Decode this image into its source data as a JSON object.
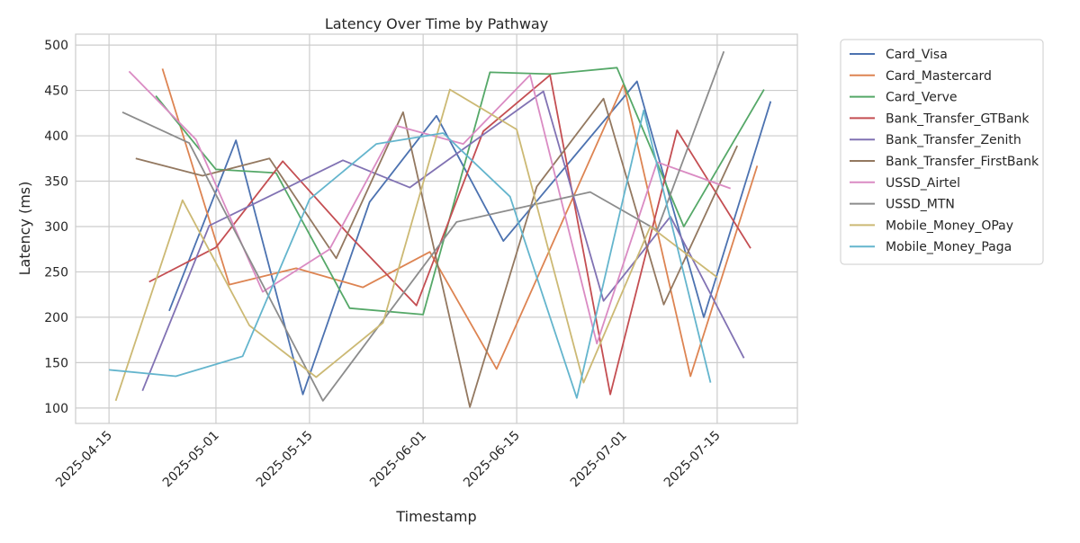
{
  "chart_data": {
    "type": "line",
    "title": "Latency Over Time by Pathway",
    "xlabel": "Timestamp",
    "ylabel": "Latency (ms)",
    "x_ticks": [
      "2025-04-15",
      "2025-05-01",
      "2025-05-15",
      "2025-06-01",
      "2025-06-15",
      "2025-07-01",
      "2025-07-15"
    ],
    "y_ticks": [
      100,
      150,
      200,
      250,
      300,
      350,
      400,
      450,
      500
    ],
    "xlim": [
      "2025-04-10",
      "2025-07-27"
    ],
    "ylim": [
      83,
      512
    ],
    "grid": true,
    "legend_position": "outside-right",
    "series": [
      {
        "name": "Card_Visa",
        "color": "#4c72b0",
        "points": [
          [
            "2025-04-24",
            207
          ],
          [
            "2025-05-04",
            395
          ],
          [
            "2025-05-14",
            115
          ],
          [
            "2025-05-24",
            327
          ],
          [
            "2025-06-03",
            422
          ],
          [
            "2025-06-13",
            284
          ],
          [
            "2025-07-03",
            460
          ],
          [
            "2025-07-13",
            200
          ],
          [
            "2025-07-23",
            438
          ]
        ]
      },
      {
        "name": "Card_Mastercard",
        "color": "#dd8452",
        "points": [
          [
            "2025-04-23",
            474
          ],
          [
            "2025-05-03",
            236
          ],
          [
            "2025-05-13",
            254
          ],
          [
            "2025-05-23",
            233
          ],
          [
            "2025-06-02",
            272
          ],
          [
            "2025-06-12",
            143
          ],
          [
            "2025-07-01",
            457
          ],
          [
            "2025-07-11",
            135
          ],
          [
            "2025-07-21",
            367
          ]
        ]
      },
      {
        "name": "Card_Verve",
        "color": "#55a868",
        "points": [
          [
            "2025-04-22",
            444
          ],
          [
            "2025-05-01",
            363
          ],
          [
            "2025-05-10",
            359
          ],
          [
            "2025-05-21",
            210
          ],
          [
            "2025-06-01",
            203
          ],
          [
            "2025-06-11",
            470
          ],
          [
            "2025-06-20",
            468
          ],
          [
            "2025-06-30",
            475
          ],
          [
            "2025-07-10",
            300
          ],
          [
            "2025-07-22",
            451
          ]
        ]
      },
      {
        "name": "Bank_Transfer_GTBank",
        "color": "#c44e52",
        "points": [
          [
            "2025-04-21",
            239
          ],
          [
            "2025-05-01",
            277
          ],
          [
            "2025-05-11",
            372
          ],
          [
            "2025-05-21",
            290
          ],
          [
            "2025-05-31",
            213
          ],
          [
            "2025-06-10",
            405
          ],
          [
            "2025-06-20",
            467
          ],
          [
            "2025-06-29",
            115
          ],
          [
            "2025-07-09",
            406
          ],
          [
            "2025-07-20",
            276
          ]
        ]
      },
      {
        "name": "Bank_Transfer_Zenith",
        "color": "#8172b3",
        "points": [
          [
            "2025-04-20",
            119
          ],
          [
            "2025-04-30",
            301
          ],
          [
            "2025-05-20",
            373
          ],
          [
            "2025-05-30",
            343
          ],
          [
            "2025-06-19",
            449
          ],
          [
            "2025-06-28",
            218
          ],
          [
            "2025-07-08",
            311
          ],
          [
            "2025-07-19",
            155
          ]
        ]
      },
      {
        "name": "Bank_Transfer_FirstBank",
        "color": "#937860",
        "points": [
          [
            "2025-04-19",
            375
          ],
          [
            "2025-04-29",
            356
          ],
          [
            "2025-05-09",
            375
          ],
          [
            "2025-05-19",
            265
          ],
          [
            "2025-05-29",
            426
          ],
          [
            "2025-06-08",
            101
          ],
          [
            "2025-06-18",
            344
          ],
          [
            "2025-06-28",
            441
          ],
          [
            "2025-07-07",
            214
          ],
          [
            "2025-07-18",
            389
          ]
        ]
      },
      {
        "name": "USSD_Airtel",
        "color": "#da8bc3",
        "points": [
          [
            "2025-04-18",
            471
          ],
          [
            "2025-04-28",
            396
          ],
          [
            "2025-05-08",
            228
          ],
          [
            "2025-05-18",
            275
          ],
          [
            "2025-05-28",
            411
          ],
          [
            "2025-06-07",
            391
          ],
          [
            "2025-06-17",
            467
          ],
          [
            "2025-06-27",
            171
          ],
          [
            "2025-07-06",
            371
          ],
          [
            "2025-07-17",
            342
          ]
        ]
      },
      {
        "name": "USSD_MTN",
        "color": "#8c8c8c",
        "points": [
          [
            "2025-04-17",
            426
          ],
          [
            "2025-04-27",
            392
          ],
          [
            "2025-05-17",
            108
          ],
          [
            "2025-06-06",
            305
          ],
          [
            "2025-06-26",
            338
          ],
          [
            "2025-07-06",
            296
          ],
          [
            "2025-07-16",
            493
          ]
        ]
      },
      {
        "name": "Mobile_Money_OPay",
        "color": "#ccb974",
        "points": [
          [
            "2025-04-16",
            108
          ],
          [
            "2025-04-26",
            329
          ],
          [
            "2025-05-06",
            191
          ],
          [
            "2025-05-16",
            134
          ],
          [
            "2025-05-26",
            194
          ],
          [
            "2025-06-05",
            451
          ],
          [
            "2025-06-15",
            407
          ],
          [
            "2025-06-25",
            128
          ],
          [
            "2025-07-05",
            300
          ],
          [
            "2025-07-15",
            244
          ]
        ]
      },
      {
        "name": "Mobile_Money_Paga",
        "color": "#64b5cd",
        "points": [
          [
            "2025-04-15",
            142
          ],
          [
            "2025-04-25",
            135
          ],
          [
            "2025-05-05",
            157
          ],
          [
            "2025-05-15",
            330
          ],
          [
            "2025-05-25",
            391
          ],
          [
            "2025-06-04",
            403
          ],
          [
            "2025-06-14",
            333
          ],
          [
            "2025-06-24",
            111
          ],
          [
            "2025-07-04",
            428
          ],
          [
            "2025-07-14",
            128
          ]
        ]
      }
    ]
  }
}
